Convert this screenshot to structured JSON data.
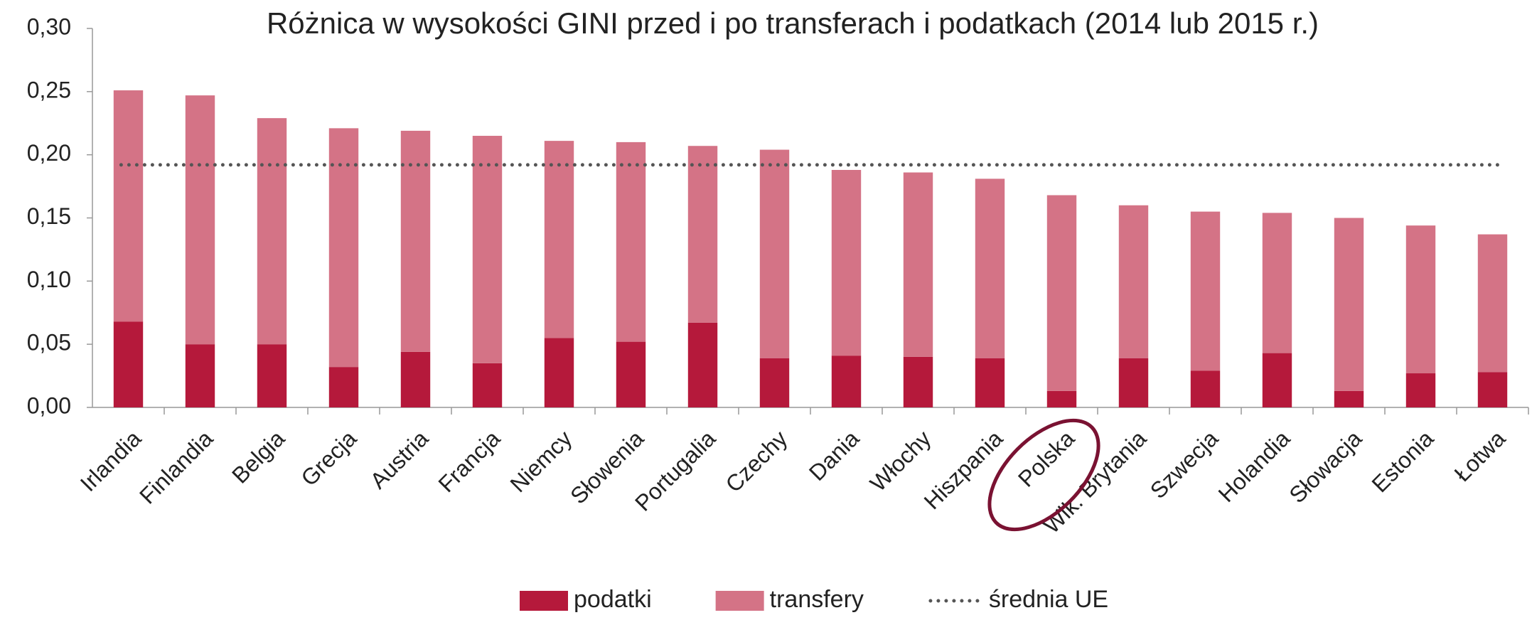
{
  "chart_data": {
    "type": "bar",
    "stacked": true,
    "title": "Różnica w wysokości GINI przed i po transferach i podatkach (2014 lub 2015 r.)",
    "categories": [
      "Irlandia",
      "Finlandia",
      "Belgia",
      "Grecja",
      "Austria",
      "Francja",
      "Niemcy",
      "Słowenia",
      "Portugalia",
      "Czechy",
      "Dania",
      "Włochy",
      "Hiszpania",
      "Polska",
      "Wlk. Brytania",
      "Szwecja",
      "Holandia",
      "Słowacja",
      "Estonia",
      "Łotwa"
    ],
    "series": [
      {
        "name": "podatki",
        "color": "#b5193b",
        "values": [
          0.068,
          0.05,
          0.05,
          0.032,
          0.044,
          0.035,
          0.055,
          0.052,
          0.067,
          0.039,
          0.041,
          0.04,
          0.039,
          0.013,
          0.039,
          0.029,
          0.043,
          0.013,
          0.027,
          0.028
        ]
      },
      {
        "name": "transfery",
        "color": "#d47386",
        "values": [
          0.183,
          0.197,
          0.179,
          0.189,
          0.175,
          0.18,
          0.156,
          0.158,
          0.14,
          0.165,
          0.147,
          0.146,
          0.142,
          0.155,
          0.121,
          0.126,
          0.111,
          0.137,
          0.117,
          0.109
        ]
      }
    ],
    "reference_line": {
      "name": "średnia UE",
      "color": "#555555",
      "value": 0.192
    },
    "ylim": [
      0,
      0.3
    ],
    "yticks": [
      {
        "value": 0,
        "label": "0,00"
      },
      {
        "value": 0.05,
        "label": "0,05"
      },
      {
        "value": 0.1,
        "label": "0,10"
      },
      {
        "value": 0.15,
        "label": "0,15"
      },
      {
        "value": 0.2,
        "label": "0,20"
      },
      {
        "value": 0.25,
        "label": "0,25"
      },
      {
        "value": 0.3,
        "label": "0,30"
      }
    ],
    "grid": false
  }
}
